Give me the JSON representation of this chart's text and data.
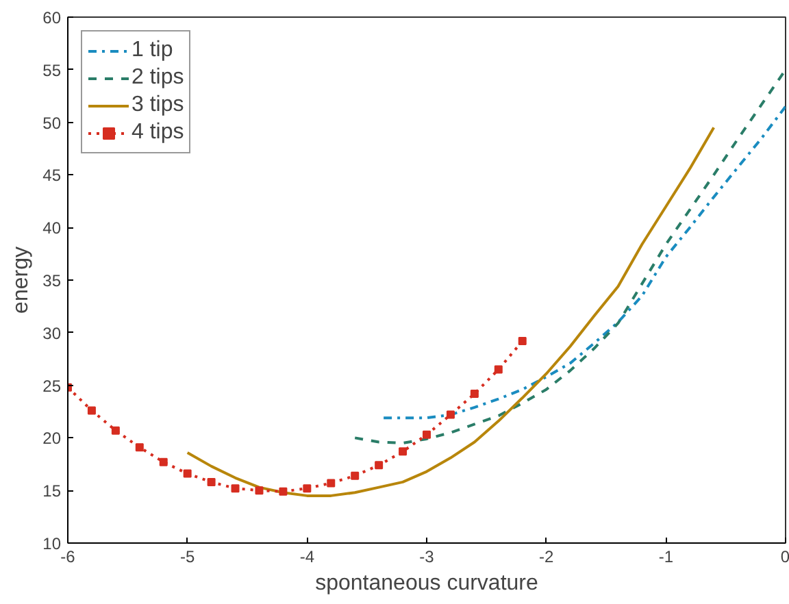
{
  "chart_data": {
    "type": "line",
    "xlabel": "spontaneous curvature",
    "ylabel": "energy",
    "xlim": [
      -6,
      0
    ],
    "ylim": [
      10,
      60
    ],
    "xticks": [
      -6,
      -5,
      -4,
      -3,
      -2,
      -1,
      0
    ],
    "yticks": [
      10,
      15,
      20,
      25,
      30,
      35,
      40,
      45,
      50,
      55,
      60
    ],
    "grid": false,
    "legend": "top left",
    "series": [
      {
        "name": "1 tip",
        "color": "#1a8cc0",
        "line_style": "dashdot",
        "marker": "none",
        "x": [
          -3.36,
          -3.0,
          -2.8,
          -2.6,
          -2.4,
          -2.2,
          -2.0,
          -1.8,
          -1.6,
          -1.4,
          -1.2,
          -1.0,
          -0.8,
          -0.6,
          -0.4,
          -0.2,
          0
        ],
        "values": [
          21.9,
          21.9,
          22.2,
          22.9,
          23.7,
          24.6,
          25.8,
          27.1,
          29.0,
          31.0,
          33.5,
          37.2,
          40.0,
          42.9,
          45.7,
          48.5,
          51.5
        ]
      },
      {
        "name": "2 tips",
        "color": "#2a7d68",
        "line_style": "dashed",
        "marker": "none",
        "x": [
          -3.6,
          -3.4,
          -3.2,
          -3.0,
          -2.8,
          -2.6,
          -2.4,
          -2.2,
          -2.0,
          -1.8,
          -1.6,
          -1.4,
          -1.0,
          -0.8,
          -0.6,
          -0.4,
          -0.2,
          0
        ],
        "values": [
          20.0,
          19.6,
          19.5,
          19.9,
          20.5,
          21.3,
          22.1,
          23.3,
          24.6,
          26.4,
          28.5,
          30.9,
          38.4,
          41.7,
          45.0,
          48.4,
          51.7,
          55.0
        ]
      },
      {
        "name": "3 tips",
        "color": "#b8860b",
        "line_style": "solid",
        "marker": "none",
        "x": [
          -5.0,
          -4.8,
          -4.6,
          -4.4,
          -4.2,
          -4.0,
          -3.8,
          -3.6,
          -3.4,
          -3.2,
          -3.0,
          -2.8,
          -2.6,
          -2.4,
          -2.2,
          -2.0,
          -1.8,
          -1.6,
          -1.4,
          -1.2,
          -1.0,
          -0.8,
          -0.6
        ],
        "values": [
          18.6,
          17.3,
          16.2,
          15.3,
          14.8,
          14.5,
          14.5,
          14.8,
          15.3,
          15.8,
          16.8,
          18.1,
          19.6,
          21.6,
          23.8,
          26.1,
          28.7,
          31.6,
          34.4,
          38.4,
          42.0,
          45.6,
          49.5
        ]
      },
      {
        "name": "4 tips",
        "color": "#d62d20",
        "line_style": "dotted",
        "marker": "square",
        "x": [
          -6.0,
          -5.8,
          -5.6,
          -5.4,
          -5.2,
          -5.0,
          -4.8,
          -4.6,
          -4.4,
          -4.2,
          -4.0,
          -3.8,
          -3.6,
          -3.4,
          -3.2,
          -3.0,
          -2.8,
          -2.6,
          -2.4,
          -2.2
        ],
        "values": [
          24.8,
          22.6,
          20.7,
          19.1,
          17.7,
          16.6,
          15.8,
          15.2,
          15.0,
          14.9,
          15.2,
          15.7,
          16.4,
          17.4,
          18.7,
          20.3,
          22.2,
          24.2,
          26.5,
          29.2
        ]
      }
    ]
  }
}
